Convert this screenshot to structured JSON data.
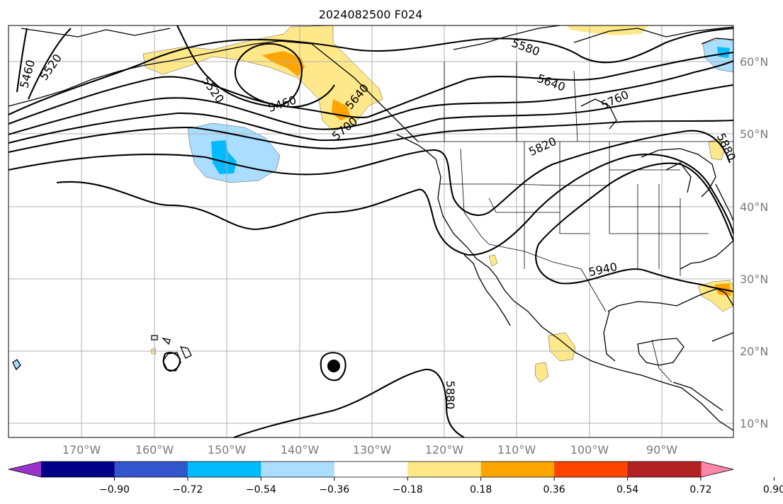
{
  "title": "2024082500 F024",
  "longitude_labels": [
    "170°W",
    "160°W",
    "150°W",
    "140°W",
    "130°W",
    "120°W",
    "110°W",
    "100°W",
    "90°W"
  ],
  "latitude_labels": [
    "60°N",
    "50°N",
    "40°N",
    "30°N",
    "20°N",
    "10°N"
  ],
  "contour_labels": [
    "5460",
    "5520",
    "5520",
    "5460",
    "5700",
    "5640",
    "5580",
    "5640",
    "5760",
    "5820",
    "5880",
    "5940",
    "5880"
  ],
  "colorbar": {
    "tick_labels": [
      "−0.90",
      "−0.72",
      "−0.54",
      "−0.36",
      "−0.18",
      "0.18",
      "0.36",
      "0.54",
      "0.72",
      "0.90"
    ],
    "colors": [
      "#9933cc",
      "#000088",
      "#3355cc",
      "#00bbff",
      "#aaddff",
      "#ffffff",
      "#ffe88a",
      "#ffa500",
      "#ff4500",
      "#b22222",
      "#ff88aa"
    ]
  }
}
